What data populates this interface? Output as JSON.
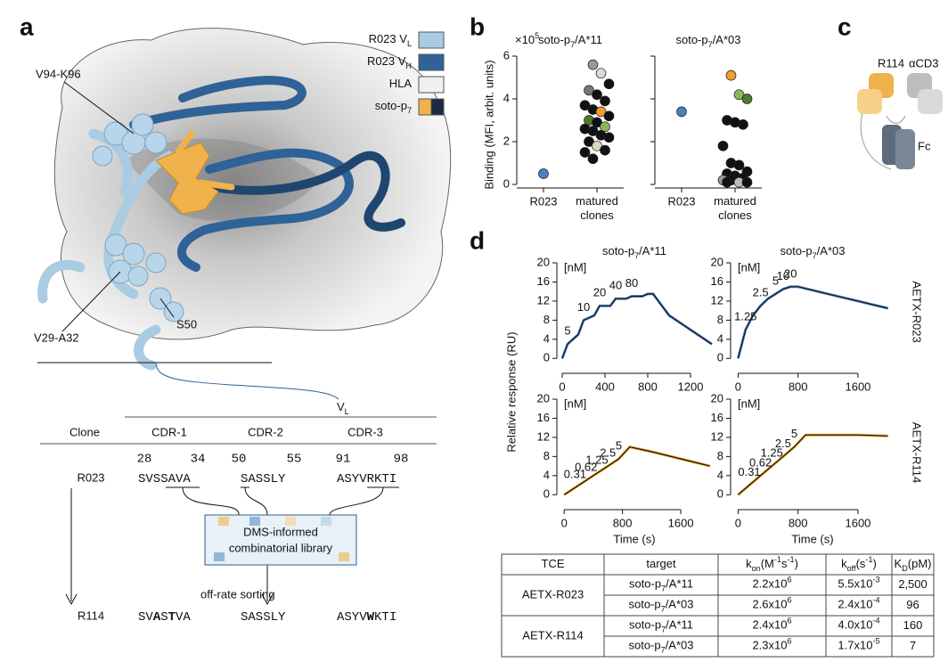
{
  "panel_a": {
    "label": "a",
    "legend": [
      {
        "text": [
          {
            "text": "R023 V"
          },
          {
            "text": "L",
            "style": "sub"
          }
        ],
        "color": "#a9cce3"
      },
      {
        "text": [
          {
            "text": "R023 V"
          },
          {
            "text": "H",
            "style": "sub"
          }
        ],
        "color": "#2f6296"
      },
      {
        "text": [
          {
            "text": "HLA"
          }
        ],
        "color": "#f0f0f0"
      },
      {
        "text": [
          {
            "text": "soto-p"
          },
          {
            "text": "7",
            "style": "sub"
          }
        ],
        "color": "#f0b24a",
        "color2": "#1c2a44"
      }
    ],
    "annotations": [
      "V94-K96",
      "V29-A32",
      "S50"
    ],
    "vl_label": [
      {
        "text": "V"
      },
      {
        "text": "L",
        "style": "sub"
      }
    ],
    "table": {
      "headers": [
        "Clone",
        "CDR-1",
        "CDR-2",
        "CDR-3"
      ],
      "positions": [
        28,
        34,
        50,
        55,
        91,
        98
      ],
      "rows": [
        {
          "clone": "R023",
          "cdrs": [
            [
              {
                "text": "SVSSAVA"
              }
            ],
            [
              {
                "text": "SASSLY"
              }
            ],
            [
              {
                "text": "ASYVRKTI"
              }
            ]
          ]
        },
        {
          "clone": "R114",
          "cdrs": [
            [
              {
                "text": "SV"
              },
              {
                "text": "A",
                "style": "bold"
              },
              {
                "text": "S"
              },
              {
                "text": "T",
                "style": "bold"
              },
              {
                "text": "VA"
              }
            ],
            [
              {
                "text": "SASSLY"
              }
            ],
            [
              {
                "text": "ASYV"
              },
              {
                "text": "W",
                "style": "bold"
              },
              {
                "text": "KTI"
              }
            ]
          ]
        }
      ]
    },
    "library_box": [
      "DMS-informed",
      "combinatorial library"
    ],
    "sorting": "off-rate sorting"
  },
  "panel_b": {
    "label": "b",
    "y_label": "Binding (MFI, arbit. units)",
    "scale_label": [
      {
        "text": "×10"
      },
      {
        "text": "5",
        "style": "sup"
      }
    ]
  },
  "panel_c": {
    "label": "c",
    "labels": [
      "R114",
      "αCD3",
      "Fc"
    ]
  },
  "panel_d": {
    "label": "d",
    "y_label": "Relative response (RU)",
    "x_label": "Time (s)",
    "column_titles": [
      [
        {
          "text": "soto-p"
        },
        {
          "text": "7",
          "style": "sub"
        },
        {
          "text": "/A*11"
        }
      ],
      [
        {
          "text": "soto-p"
        },
        {
          "text": "7",
          "style": "sub"
        },
        {
          "text": "/A*03"
        }
      ]
    ],
    "row_labels": [
      "AETX-R023",
      "AETX-R114"
    ],
    "table": {
      "headers": [
        [
          {
            "text": "TCE"
          }
        ],
        [
          {
            "text": "target"
          }
        ],
        [
          {
            "text": "k"
          },
          {
            "text": "on",
            "style": "sub"
          },
          {
            "text": "(M"
          },
          {
            "text": "-1",
            "style": "sup"
          },
          {
            "text": "s"
          },
          {
            "text": "-1",
            "style": "sup"
          },
          {
            "text": ")"
          }
        ],
        [
          {
            "text": "k"
          },
          {
            "text": "off",
            "style": "sub"
          },
          {
            "text": "(s"
          },
          {
            "text": "-1",
            "style": "sup"
          },
          {
            "text": ")"
          }
        ],
        [
          {
            "text": "K"
          },
          {
            "text": "D",
            "style": "sub"
          },
          {
            "text": "(pM)"
          }
        ]
      ],
      "groups": [
        {
          "tce": "AETX-R023",
          "rows": [
            {
              "target": [
                {
                  "text": "soto-p"
                },
                {
                  "text": "7",
                  "style": "sub"
                },
                {
                  "text": "/A*11"
                }
              ],
              "kon": [
                {
                  "text": "2.2x10"
                },
                {
                  "text": "6",
                  "style": "sup"
                }
              ],
              "koff": [
                {
                  "text": "5.5x10"
                },
                {
                  "text": "-3",
                  "style": "sup"
                }
              ],
              "kd": "2,500"
            },
            {
              "target": [
                {
                  "text": "soto-p"
                },
                {
                  "text": "7",
                  "style": "sub"
                },
                {
                  "text": "/A*03"
                }
              ],
              "kon": [
                {
                  "text": "2.6x10"
                },
                {
                  "text": "6",
                  "style": "sup"
                }
              ],
              "koff": [
                {
                  "text": "2.4x10"
                },
                {
                  "text": "-4",
                  "style": "sup"
                }
              ],
              "kd": "96"
            }
          ]
        },
        {
          "tce": "AETX-R114",
          "rows": [
            {
              "target": [
                {
                  "text": "soto-p"
                },
                {
                  "text": "7",
                  "style": "sub"
                },
                {
                  "text": "/A*11"
                }
              ],
              "kon": [
                {
                  "text": "2.4x10"
                },
                {
                  "text": "6",
                  "style": "sup"
                }
              ],
              "koff": [
                {
                  "text": "4.0x10"
                },
                {
                  "text": "-4",
                  "style": "sup"
                }
              ],
              "kd": "160"
            },
            {
              "target": [
                {
                  "text": "soto-p"
                },
                {
                  "text": "7",
                  "style": "sub"
                },
                {
                  "text": "/A*03"
                }
              ],
              "kon": [
                {
                  "text": "2.3x10"
                },
                {
                  "text": "6",
                  "style": "sup"
                }
              ],
              "koff": [
                {
                  "text": "1.7x10"
                },
                {
                  "text": "-5",
                  "style": "sup"
                }
              ],
              "kd": "7"
            }
          ]
        }
      ]
    }
  },
  "chart_data": [
    {
      "type": "scatter",
      "title": [
        {
          "text": "soto-p"
        },
        {
          "text": "7",
          "style": "sub"
        },
        {
          "text": "/A*11"
        }
      ],
      "categories": [
        "R023",
        "matured clones"
      ],
      "ylim": [
        0,
        6
      ],
      "yticks": [
        0,
        2,
        4,
        6
      ],
      "points": [
        {
          "x": 0,
          "y": 0.5,
          "color": "#4a7fc0"
        },
        {
          "x": 1,
          "y": 5.6,
          "color": "#999999"
        },
        {
          "x": 1,
          "y": 5.2,
          "color": "#d9d9d9"
        },
        {
          "x": 1,
          "y": 4.7,
          "color": "#111111"
        },
        {
          "x": 1,
          "y": 4.4,
          "color": "#777777"
        },
        {
          "x": 1,
          "y": 4.2,
          "color": "#111111"
        },
        {
          "x": 1,
          "y": 3.9,
          "color": "#111111"
        },
        {
          "x": 1,
          "y": 3.7,
          "color": "#111111"
        },
        {
          "x": 1,
          "y": 3.5,
          "color": "#111111"
        },
        {
          "x": 1,
          "y": 3.4,
          "color": "#f0a030"
        },
        {
          "x": 1,
          "y": 3.2,
          "color": "#111111"
        },
        {
          "x": 1,
          "y": 3.0,
          "color": "#4f7a2a"
        },
        {
          "x": 1,
          "y": 2.9,
          "color": "#111111"
        },
        {
          "x": 1,
          "y": 2.7,
          "color": "#8bb55a"
        },
        {
          "x": 1,
          "y": 2.6,
          "color": "#111111"
        },
        {
          "x": 1,
          "y": 2.5,
          "color": "#111111"
        },
        {
          "x": 1,
          "y": 2.3,
          "color": "#111111"
        },
        {
          "x": 1,
          "y": 2.2,
          "color": "#111111"
        },
        {
          "x": 1,
          "y": 2.0,
          "color": "#111111"
        },
        {
          "x": 1,
          "y": 1.8,
          "color": "#d9d9c0"
        },
        {
          "x": 1,
          "y": 1.6,
          "color": "#111111"
        },
        {
          "x": 1,
          "y": 1.5,
          "color": "#111111"
        },
        {
          "x": 1,
          "y": 1.2,
          "color": "#111111"
        }
      ]
    },
    {
      "type": "scatter",
      "title": [
        {
          "text": "soto-p"
        },
        {
          "text": "7",
          "style": "sub"
        },
        {
          "text": "/A*03"
        }
      ],
      "categories": [
        "R023",
        "matured clones"
      ],
      "ylim": [
        0,
        6
      ],
      "yticks": [
        0,
        2,
        4,
        6
      ],
      "points": [
        {
          "x": 0,
          "y": 3.4,
          "color": "#4a7fc0"
        },
        {
          "x": 1,
          "y": 5.1,
          "color": "#f0a030"
        },
        {
          "x": 1,
          "y": 4.2,
          "color": "#8bb55a"
        },
        {
          "x": 1,
          "y": 4.0,
          "color": "#4f7a2a"
        },
        {
          "x": 1,
          "y": 3.0,
          "color": "#111111"
        },
        {
          "x": 1,
          "y": 2.9,
          "color": "#111111"
        },
        {
          "x": 1,
          "y": 2.8,
          "color": "#111111"
        },
        {
          "x": 1,
          "y": 1.8,
          "color": "#111111"
        },
        {
          "x": 1,
          "y": 1.0,
          "color": "#111111"
        },
        {
          "x": 1,
          "y": 0.9,
          "color": "#111111"
        },
        {
          "x": 1,
          "y": 0.6,
          "color": "#111111"
        },
        {
          "x": 1,
          "y": 0.5,
          "color": "#111111"
        },
        {
          "x": 1,
          "y": 0.4,
          "color": "#111111"
        },
        {
          "x": 1,
          "y": 0.3,
          "color": "#111111"
        },
        {
          "x": 1,
          "y": 0.2,
          "color": "#999999"
        },
        {
          "x": 1,
          "y": 0.2,
          "color": "#111111"
        },
        {
          "x": 1,
          "y": 0.1,
          "color": "#bbbbbb"
        },
        {
          "x": 1,
          "y": 0.1,
          "color": "#111111"
        },
        {
          "x": 1,
          "y": 0.1,
          "color": "#111111"
        }
      ]
    },
    {
      "type": "line",
      "unit_label": "[nM]",
      "concentrations": [
        5,
        10,
        20,
        40,
        80
      ],
      "xlim": [
        -50,
        1450
      ],
      "xticks": [
        0,
        400,
        800,
        1200
      ],
      "ylim": [
        -2,
        20
      ],
      "yticks": [
        0,
        4,
        8,
        12,
        16,
        20
      ],
      "x": [
        0,
        50,
        150,
        200,
        300,
        350,
        450,
        500,
        600,
        650,
        750,
        800,
        850,
        1000,
        1200,
        1400
      ],
      "series": [
        {
          "color": "#5b8fc7",
          "values": [
            0,
            3,
            5,
            8,
            9,
            11,
            11,
            12.5,
            12.5,
            13,
            13,
            13.5,
            13.5,
            9,
            6,
            3
          ]
        }
      ]
    },
    {
      "type": "line",
      "unit_label": "[nM]",
      "concentrations": [
        1.25,
        2.5,
        5,
        10,
        20
      ],
      "xlim": [
        -100,
        2100
      ],
      "xticks": [
        0,
        800,
        1600
      ],
      "ylim": [
        -2,
        20
      ],
      "yticks": [
        0,
        4,
        8,
        12,
        16,
        20
      ],
      "x": [
        0,
        100,
        200,
        300,
        400,
        500,
        600,
        700,
        800,
        1200,
        1600,
        2000
      ],
      "series": [
        {
          "color": "#5b8fc7",
          "values": [
            0,
            6,
            9,
            11,
            12.5,
            13.5,
            14.5,
            15,
            15,
            13.5,
            12,
            10.5
          ]
        }
      ]
    },
    {
      "type": "line",
      "unit_label": "[nM]",
      "concentrations": [
        0.31,
        0.62,
        1.25,
        2.5,
        5
      ],
      "xlim": [
        -100,
        2100
      ],
      "xticks": [
        0,
        800,
        1600
      ],
      "ylim": [
        -2,
        20
      ],
      "yticks": [
        0,
        4,
        8,
        12,
        16,
        20
      ],
      "x": [
        0,
        150,
        300,
        450,
        600,
        750,
        900,
        1200,
        1600,
        2000
      ],
      "series": [
        {
          "color": "#f0a830",
          "values": [
            0,
            1.5,
            3,
            4.5,
            6,
            7.5,
            10,
            9,
            7.5,
            6
          ]
        }
      ]
    },
    {
      "type": "line",
      "unit_label": "[nM]",
      "concentrations": [
        0.31,
        0.62,
        1.25,
        2.5,
        5
      ],
      "xlim": [
        -100,
        2100
      ],
      "xticks": [
        0,
        800,
        1600
      ],
      "ylim": [
        -2,
        20
      ],
      "yticks": [
        0,
        4,
        8,
        12,
        16,
        20
      ],
      "x": [
        0,
        150,
        300,
        450,
        600,
        750,
        900,
        1200,
        1600,
        2000
      ],
      "series": [
        {
          "color": "#f0a830",
          "values": [
            0,
            2,
            4,
            6,
            8,
            10,
            12.5,
            12.5,
            12.5,
            12.3
          ]
        }
      ]
    }
  ]
}
